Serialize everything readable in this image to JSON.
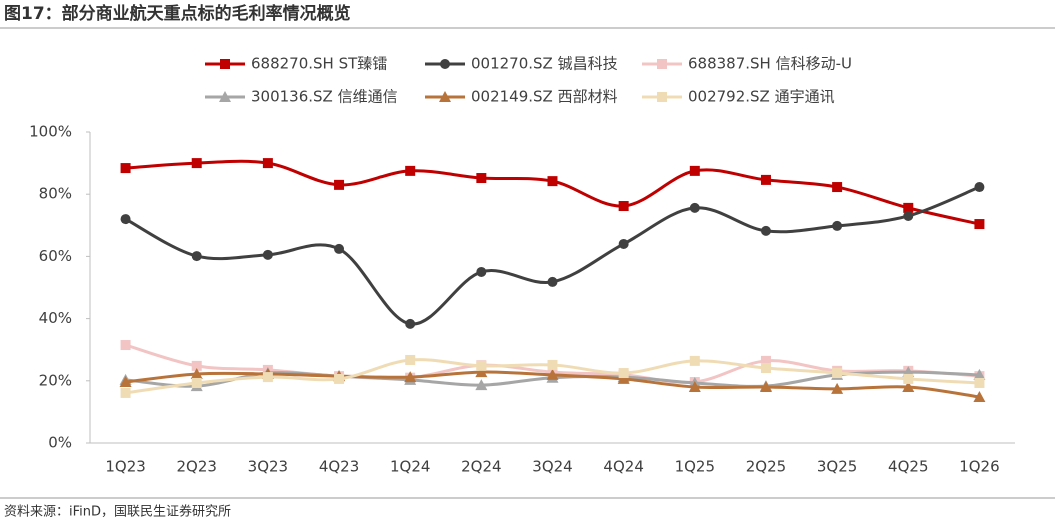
{
  "chart_data": {
    "type": "line",
    "title": "图17：部分商业航天重点标的毛利率情况概览",
    "source": "资料来源：iFinD，国联民生证券研究所",
    "categories": [
      "1Q23",
      "2Q23",
      "3Q23",
      "4Q23",
      "1Q24",
      "2Q24",
      "3Q24",
      "4Q24",
      "1Q25",
      "2Q25",
      "3Q25",
      "4Q25",
      "1Q26"
    ],
    "ylim": [
      0,
      100
    ],
    "yticks": [
      {
        "value": 0,
        "label": "0%"
      },
      {
        "value": 20,
        "label": "20%"
      },
      {
        "value": 40,
        "label": "40%"
      },
      {
        "value": 60,
        "label": "60%"
      },
      {
        "value": 80,
        "label": "80%"
      },
      {
        "value": 100,
        "label": "100%"
      }
    ],
    "grid": false,
    "series": [
      {
        "name": "688270.SH ST臻镭",
        "color": "#c00000",
        "marker": "square",
        "values": [
          88.4,
          90,
          90,
          83,
          87.5,
          85.2,
          84.2,
          76.2,
          87.5,
          84.6,
          82.3,
          75.6,
          70.4
        ]
      },
      {
        "name": "001270.SZ 铖昌科技",
        "color": "#404040",
        "marker": "circle",
        "values": [
          72,
          60.1,
          60.5,
          62.4,
          38.3,
          55,
          51.8,
          64,
          75.6,
          68.2,
          69.8,
          73,
          82.3
        ]
      },
      {
        "name": "688387.SH 信科移动-U",
        "color": "#f2c4c4",
        "marker": "square",
        "values": [
          31.5,
          24.8,
          23.5,
          21.5,
          21,
          25,
          22.8,
          21.9,
          19.6,
          26.4,
          23.2,
          23.2,
          21.5
        ]
      },
      {
        "name": "300136.SZ 信维通信",
        "color": "#a6a6a6",
        "marker": "triangle",
        "values": [
          20.3,
          18.3,
          22.5,
          21.5,
          20.3,
          18.6,
          21,
          21.2,
          19.3,
          18.3,
          21.9,
          22.8,
          21.9
        ]
      },
      {
        "name": "002149.SZ 西部材料",
        "color": "#b8733a",
        "marker": "triangle",
        "values": [
          19.6,
          22.2,
          22.2,
          21.5,
          21.2,
          22.8,
          21.9,
          20.6,
          18,
          18,
          17.4,
          18,
          14.8
        ]
      },
      {
        "name": "002792.SZ 通宇通讯",
        "color": "#f0dcb4",
        "marker": "square",
        "values": [
          16.1,
          19.3,
          21.2,
          20.6,
          26.7,
          24.8,
          25.1,
          22.5,
          26.4,
          24.1,
          22.5,
          20.6,
          19.3
        ]
      }
    ]
  }
}
